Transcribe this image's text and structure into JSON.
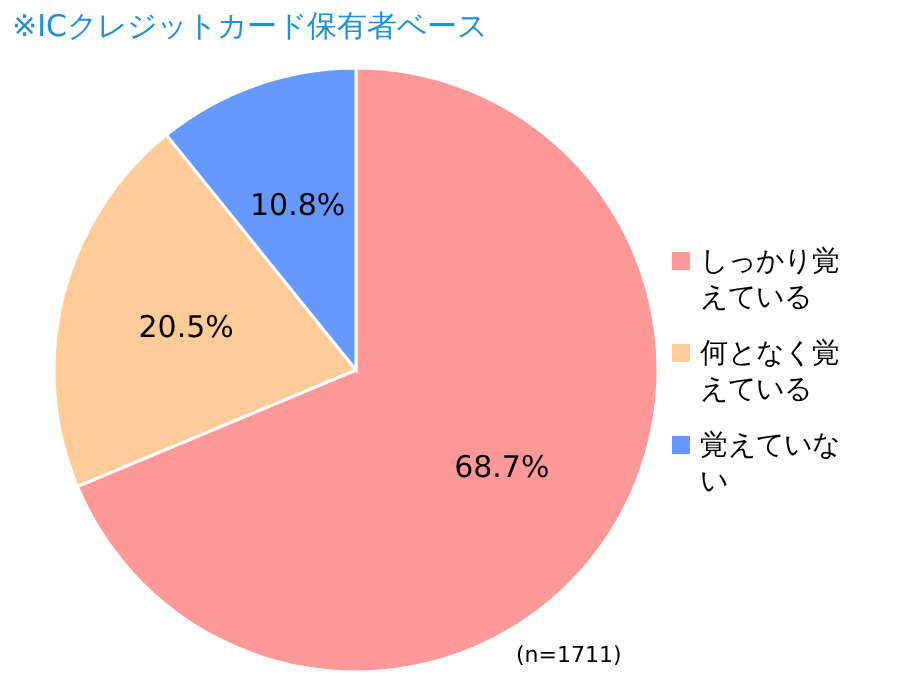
{
  "chart_data": {
    "type": "pie",
    "title": "※ICクレジットカード保有者ベース",
    "categories": [
      "しっかり覚えている",
      "何となく覚えている",
      "覚えていない"
    ],
    "values": [
      68.7,
      20.5,
      10.8
    ],
    "colors": [
      "#ff9999",
      "#ffcc99",
      "#6699ff"
    ],
    "value_labels": [
      "68.7%",
      "20.5%",
      "10.8%"
    ],
    "legend": "right",
    "annotations": [
      "(n=1711)"
    ]
  }
}
